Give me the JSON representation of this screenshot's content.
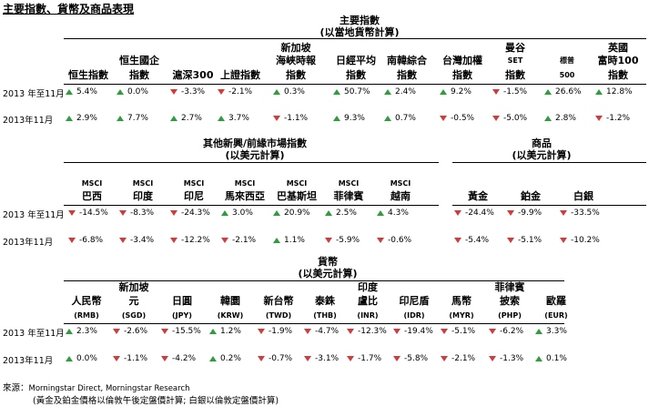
{
  "page_title": "主要指數、貨幣及商品表現",
  "row_labels": {
    "ytd": "2013 年至11月",
    "month": "2013年11月"
  },
  "indices": {
    "group_title": "主要指數",
    "group_subtitle": "(以當地貨幣計算)",
    "columns": [
      {
        "l1": "",
        "l2": "",
        "l3": "恒生指數",
        "ytd": {
          "value": "5.4%",
          "dir": "up"
        },
        "month": {
          "value": "2.9%",
          "dir": "up"
        }
      },
      {
        "l1": "",
        "l2": "恒生國企",
        "l3": "指數",
        "ytd": {
          "value": "0.0%",
          "dir": "up"
        },
        "month": {
          "value": "7.7%",
          "dir": "up"
        }
      },
      {
        "l1": "",
        "l2": "",
        "l3": "滬深300",
        "ytd": {
          "value": "-3.3%",
          "dir": "down"
        },
        "month": {
          "value": "2.7%",
          "dir": "up"
        }
      },
      {
        "l1": "",
        "l2": "",
        "l3": "上證指數",
        "ytd": {
          "value": "-2.1%",
          "dir": "down"
        },
        "month": {
          "value": "3.7%",
          "dir": "up"
        }
      },
      {
        "l1": "新加坡",
        "l2": "海峽時報",
        "l3": "指數",
        "ytd": {
          "value": "0.3%",
          "dir": "up"
        },
        "month": {
          "value": "-1.1%",
          "dir": "down"
        }
      },
      {
        "l1": "",
        "l2": "日經平均",
        "l3": "指數",
        "ytd": {
          "value": "50.7%",
          "dir": "up"
        },
        "month": {
          "value": "9.3%",
          "dir": "up"
        }
      },
      {
        "l1": "",
        "l2": "南韓綜合",
        "l3": "指數",
        "ytd": {
          "value": "2.4%",
          "dir": "up"
        },
        "month": {
          "value": "0.7%",
          "dir": "up"
        }
      },
      {
        "l1": "",
        "l2": "台灣加權",
        "l3": "指數",
        "ytd": {
          "value": "9.2%",
          "dir": "up"
        },
        "month": {
          "value": "-0.5%",
          "dir": "down"
        }
      },
      {
        "l1": "曼谷",
        "l2": "SET",
        "l3": "指數",
        "ytd": {
          "value": "-1.5%",
          "dir": "down"
        },
        "month": {
          "value": "-5.0%",
          "dir": "down"
        }
      },
      {
        "l1": "",
        "l2": "標普",
        "l3": "500",
        "ytd": {
          "value": "26.6%",
          "dir": "up"
        },
        "month": {
          "value": "2.8%",
          "dir": "up"
        }
      },
      {
        "l1": "英國",
        "l2": "富時100",
        "l3": "指數",
        "ytd": {
          "value": "12.8%",
          "dir": "up"
        },
        "month": {
          "value": "-1.2%",
          "dir": "down"
        }
      }
    ]
  },
  "emerging": {
    "group_title": "其他新興/前緣市場指數",
    "group_subtitle": "(以美元計算)",
    "columns": [
      {
        "l1": "MSCI",
        "l2": "巴西",
        "ytd": {
          "value": "-14.5%",
          "dir": "down"
        },
        "month": {
          "value": "-6.8%",
          "dir": "down"
        }
      },
      {
        "l1": "MSCI",
        "l2": "印度",
        "ytd": {
          "value": "-8.3%",
          "dir": "down"
        },
        "month": {
          "value": "-3.4%",
          "dir": "down"
        }
      },
      {
        "l1": "MSCI",
        "l2": "印尼",
        "ytd": {
          "value": "-24.3%",
          "dir": "down"
        },
        "month": {
          "value": "-12.2%",
          "dir": "down"
        }
      },
      {
        "l1": "MSCI",
        "l2": "馬來西亞",
        "ytd": {
          "value": "3.0%",
          "dir": "up"
        },
        "month": {
          "value": "-2.1%",
          "dir": "down"
        }
      },
      {
        "l1": "MSCI",
        "l2": "巴基斯坦",
        "ytd": {
          "value": "20.9%",
          "dir": "up"
        },
        "month": {
          "value": "1.1%",
          "dir": "up"
        }
      },
      {
        "l1": "MSCI",
        "l2": "菲律賓",
        "ytd": {
          "value": "2.5%",
          "dir": "up"
        },
        "month": {
          "value": "-5.9%",
          "dir": "down"
        }
      },
      {
        "l1": "MSCI",
        "l2": "越南",
        "ytd": {
          "value": "4.3%",
          "dir": "up"
        },
        "month": {
          "value": "-0.6%",
          "dir": "down"
        }
      }
    ]
  },
  "commodities": {
    "group_title": "商品",
    "group_subtitle": "(以美元計算)",
    "columns": [
      {
        "l1": "黃金",
        "ytd": {
          "value": "-24.4%",
          "dir": "down"
        },
        "month": {
          "value": "-5.4%",
          "dir": "down"
        }
      },
      {
        "l1": "鉑金",
        "ytd": {
          "value": "-9.9%",
          "dir": "down"
        },
        "month": {
          "value": "-5.1%",
          "dir": "down"
        }
      },
      {
        "l1": "白銀",
        "ytd": {
          "value": "-33.5%",
          "dir": "down"
        },
        "month": {
          "value": "-10.2%",
          "dir": "down"
        }
      }
    ]
  },
  "currencies": {
    "group_title": "貨幣",
    "group_subtitle": "(以美元計算)",
    "columns": [
      {
        "l1": "",
        "l2": "人民幣",
        "l3": "(RMB)",
        "ytd": {
          "value": "2.3%",
          "dir": "up"
        },
        "month": {
          "value": "0.0%",
          "dir": "up"
        }
      },
      {
        "l1": "新加坡",
        "l2": "元",
        "l3": "(SGD)",
        "ytd": {
          "value": "-2.6%",
          "dir": "down"
        },
        "month": {
          "value": "-1.1%",
          "dir": "down"
        }
      },
      {
        "l1": "",
        "l2": "日圓",
        "l3": "(JPY)",
        "ytd": {
          "value": "-15.5%",
          "dir": "down"
        },
        "month": {
          "value": "-4.2%",
          "dir": "down"
        }
      },
      {
        "l1": "",
        "l2": "韓圜",
        "l3": "(KRW)",
        "ytd": {
          "value": "1.2%",
          "dir": "up"
        },
        "month": {
          "value": "0.2%",
          "dir": "up"
        }
      },
      {
        "l1": "",
        "l2": "新台幣",
        "l3": "(TWD)",
        "ytd": {
          "value": "-1.9%",
          "dir": "down"
        },
        "month": {
          "value": "-0.7%",
          "dir": "down"
        }
      },
      {
        "l1": "",
        "l2": "泰銖",
        "l3": "(THB)",
        "ytd": {
          "value": "-4.7%",
          "dir": "down"
        },
        "month": {
          "value": "-3.1%",
          "dir": "down"
        }
      },
      {
        "l1": "印度",
        "l2": "盧比",
        "l3": "(INR)",
        "ytd": {
          "value": "-12.3%",
          "dir": "down"
        },
        "month": {
          "value": "-1.7%",
          "dir": "down"
        }
      },
      {
        "l1": "",
        "l2": "印尼盾",
        "l3": "(IDR)",
        "ytd": {
          "value": "-19.4%",
          "dir": "down"
        },
        "month": {
          "value": "-5.8%",
          "dir": "down"
        }
      },
      {
        "l1": "",
        "l2": "馬幣",
        "l3": "(MYR)",
        "ytd": {
          "value": "-5.1%",
          "dir": "down"
        },
        "month": {
          "value": "-2.1%",
          "dir": "down"
        }
      },
      {
        "l1": "菲律賓",
        "l2": "披索",
        "l3": "(PHP)",
        "ytd": {
          "value": "-6.2%",
          "dir": "down"
        },
        "month": {
          "value": "-1.3%",
          "dir": "down"
        }
      },
      {
        "l1": "",
        "l2": "歐羅",
        "l3": "(EUR)",
        "ytd": {
          "value": "3.3%",
          "dir": "up"
        },
        "month": {
          "value": "0.1%",
          "dir": "up"
        }
      }
    ]
  },
  "footer": {
    "source_label": "來源：",
    "source_text": "Morningstar Direct, Morningstar Research",
    "note": "(黃金及鉑金價格以倫敦午後定盤價計算; 白銀以倫敦定盤價計算)"
  },
  "colors": {
    "up": "#2e9e3c",
    "down": "#d13b3b"
  }
}
